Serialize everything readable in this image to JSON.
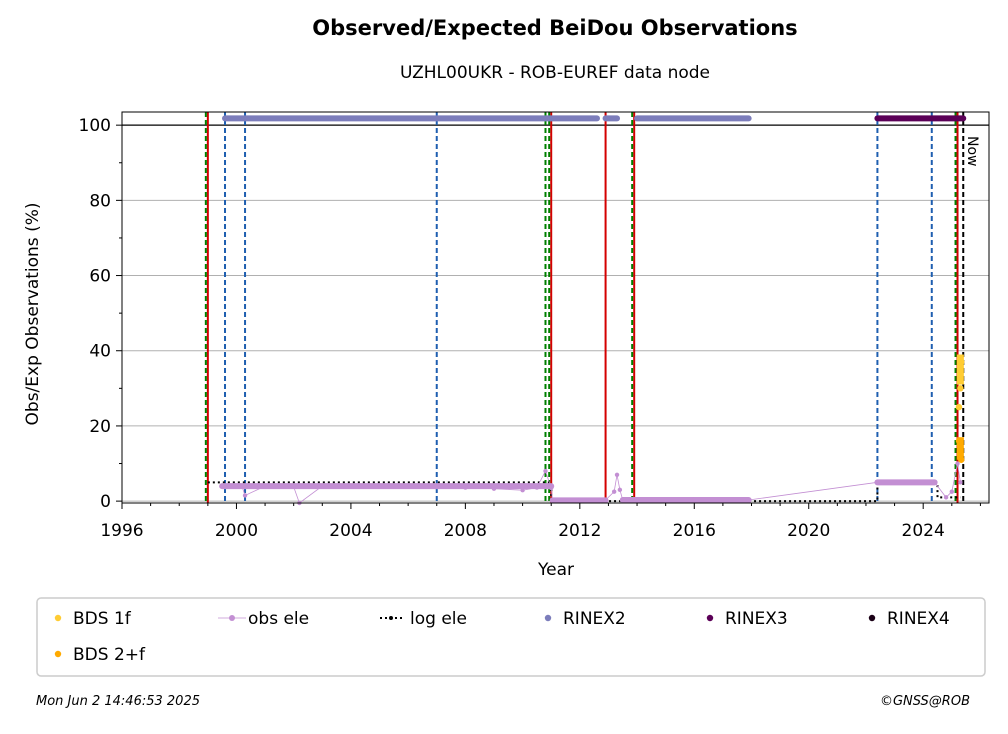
{
  "chart_data": {
    "type": "scatter",
    "title": "Observed/Expected BeiDou Observations",
    "subtitle": "UZHL00UKR - ROB-EUREF data node",
    "xlabel": "Year",
    "ylabel": "Obs/Exp Observations (%)",
    "xlim": [
      1996,
      2026.3
    ],
    "ylim": [
      -0.5,
      103.5
    ],
    "xticks": [
      "1996",
      "2000",
      "2004",
      "2008",
      "2012",
      "2016",
      "2020",
      "2024"
    ],
    "yticks": [
      "0",
      "20",
      "40",
      "60",
      "80",
      "100"
    ],
    "grid": "horizontal",
    "legend_position": "below",
    "now_label": "Now",
    "legend": [
      {
        "label": "BDS 1f",
        "marker": "dot",
        "color": "#ffcc33"
      },
      {
        "label": "obs ele",
        "marker": "dot-line",
        "color": "#c38fd3"
      },
      {
        "label": "log ele",
        "marker": "dot-dotted",
        "color": "#000000"
      },
      {
        "label": "RINEX2",
        "marker": "dot",
        "color": "#7c7dbb"
      },
      {
        "label": "RINEX3",
        "marker": "dot",
        "color": "#5b0057"
      },
      {
        "label": "RINEX4",
        "marker": "dot",
        "color": "#1a0016"
      },
      {
        "label": "BDS 2+f",
        "marker": "dot",
        "color": "#ffaa00"
      }
    ],
    "rinex2_spans": [
      [
        1999.6,
        2012.6
      ],
      [
        2012.9,
        2013.3
      ],
      [
        2014.0,
        2017.9
      ]
    ],
    "rinex3_spans": [
      [
        2022.4,
        2025.4
      ]
    ],
    "obs_ele": [
      [
        1999.5,
        4.0
      ],
      [
        2000.2,
        3.8
      ],
      [
        2000.3,
        1.5
      ],
      [
        2001,
        4
      ],
      [
        2002,
        3.8
      ],
      [
        2002.2,
        -0.5
      ],
      [
        2003,
        4
      ],
      [
        2004,
        3.9
      ],
      [
        2005,
        3.8
      ],
      [
        2006,
        3.9
      ],
      [
        2007,
        3.9
      ],
      [
        2008,
        3.6
      ],
      [
        2009,
        3.3
      ],
      [
        2010,
        2.9
      ],
      [
        2010.5,
        3.6
      ],
      [
        2010.8,
        8
      ],
      [
        2011.0,
        3.5
      ],
      [
        2011.05,
        0.2
      ],
      [
        2012,
        0.2
      ],
      [
        2012.9,
        0.3
      ],
      [
        2013.2,
        2.5
      ],
      [
        2013.3,
        7
      ],
      [
        2013.4,
        3
      ],
      [
        2013.5,
        0.3
      ],
      [
        2014,
        0.3
      ],
      [
        2016,
        0.3
      ],
      [
        2017.9,
        0.3
      ],
      [
        2022.4,
        5
      ],
      [
        2024.4,
        5
      ],
      [
        2024.8,
        1
      ],
      [
        2025.0,
        2.5
      ],
      [
        2025.2,
        10
      ],
      [
        2025.3,
        5
      ]
    ],
    "log_ele": [
      [
        1999.0,
        5
      ],
      [
        2011.0,
        5
      ],
      [
        2011.0,
        0
      ],
      [
        2022.4,
        0
      ],
      [
        2022.4,
        5
      ],
      [
        2024.5,
        5
      ],
      [
        2024.5,
        1
      ],
      [
        2025.3,
        1
      ]
    ],
    "bds1f": [
      [
        2025.3,
        38
      ],
      [
        2025.3,
        36
      ],
      [
        2025.3,
        34
      ],
      [
        2025.25,
        25
      ],
      [
        2025.3,
        30
      ],
      [
        2025.33,
        37
      ]
    ],
    "bds2f": [
      [
        2025.25,
        16
      ],
      [
        2025.3,
        14
      ],
      [
        2025.3,
        12
      ],
      [
        2025.28,
        15
      ],
      [
        2025.3,
        13
      ],
      [
        2025.33,
        11
      ]
    ],
    "vlines_red": [
      2012.9
    ],
    "vlines_red_green": [
      1999.0,
      2011.0,
      2013.9,
      2025.2
    ],
    "vlines_green_dashed": [
      2010.8
    ],
    "vlines_blue_dashed": [
      1999.6,
      2000.3,
      2007.0,
      2022.4,
      2024.3
    ],
    "vlines_black_dashed": [
      2025.4
    ],
    "footer_date": "Mon Jun  2 14:46:53 2025",
    "footer_credit": "©GNSS@ROB"
  }
}
